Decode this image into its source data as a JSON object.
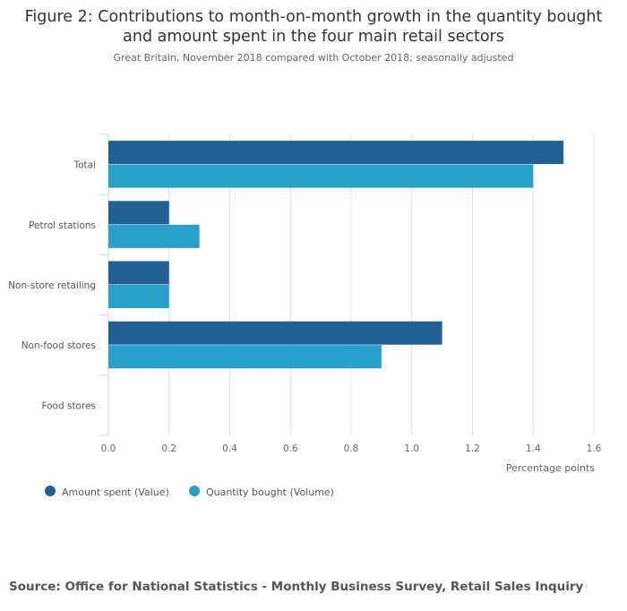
{
  "chart_data": {
    "type": "bar",
    "orientation": "horizontal",
    "title": "Figure 2: Contributions to month-on-month growth in the quantity bought and amount spent in the four main retail sectors",
    "title_lines": [
      "Figure 2: Contributions to month-on-month growth in the quantity bought",
      "and amount spent in the four main retail sectors"
    ],
    "subtitle": "Great Britain, November 2018 compared with October 2018; seasonally adjusted",
    "categories": [
      "Total",
      "Petrol stations",
      "Non-store retailing",
      "Non-food stores",
      "Food stores"
    ],
    "series": [
      {
        "name": "Amount spent (Value)",
        "color": "#206095",
        "values": [
          1.5,
          0.2,
          0.2,
          1.1,
          0
        ]
      },
      {
        "name": "Quantity bought (Volume)",
        "color": "#27a0cc",
        "values": [
          1.4,
          0.3,
          0.2,
          0.9,
          0
        ]
      }
    ],
    "xlabel": "Percentage points",
    "xlim": [
      0,
      1.6
    ],
    "xticks": [
      "0.0",
      "0.2",
      "0.4",
      "0.6",
      "0.8",
      "1.0",
      "1.2",
      "1.4",
      "1.6"
    ],
    "grid": true,
    "legend": "bottom-left"
  },
  "source": "Source: Office for National Statistics - Monthly Business Survey, Retail Sales Inquiry"
}
